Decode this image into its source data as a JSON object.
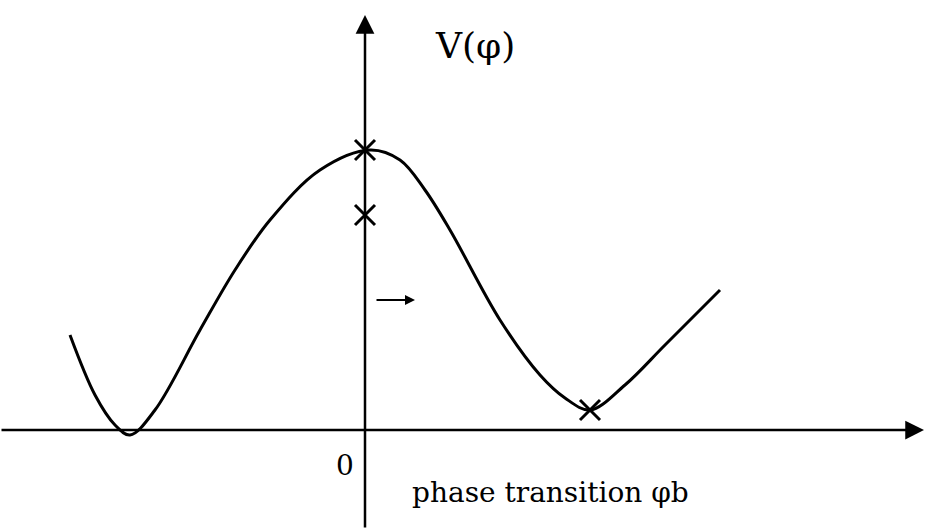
{
  "chart_data": {
    "type": "line",
    "tick_labels": false,
    "grid": false,
    "xlim": [
      -3.65,
      5.64
    ],
    "ylim": [
      -0.99,
      4.3
    ],
    "series": [
      {
        "type": "line",
        "color": "#000000",
        "x": [
          -2.95,
          -2.7,
          -2.5,
          -2.35,
          -2.1,
          -1.65,
          -1.3,
          -0.95,
          -0.45,
          0.05,
          0.35,
          0.6,
          0.85,
          1.35,
          1.75,
          2.0,
          2.25,
          2.6,
          3.0,
          3.55
        ],
        "values": [
          0.95,
          0.35,
          0.05,
          -0.05,
          0.2,
          1.0,
          1.6,
          2.1,
          2.6,
          2.8,
          2.7,
          2.4,
          2.0,
          1.1,
          0.55,
          0.32,
          0.2,
          0.45,
          0.85,
          1.4
        ]
      },
      {
        "type": "scatter",
        "marker": "x",
        "color": "#000000",
        "x": [
          0,
          0,
          2.25
        ],
        "values": [
          2.8,
          2.15,
          0.2
        ]
      }
    ],
    "annotations": [
      {
        "text": "V(φ)",
        "x": 1.1,
        "y": 3.85
      },
      {
        "text": "0",
        "x": -0.2,
        "y": -0.35
      },
      {
        "text": "phase transition φb",
        "x": 1.85,
        "y": -0.62
      }
    ]
  }
}
